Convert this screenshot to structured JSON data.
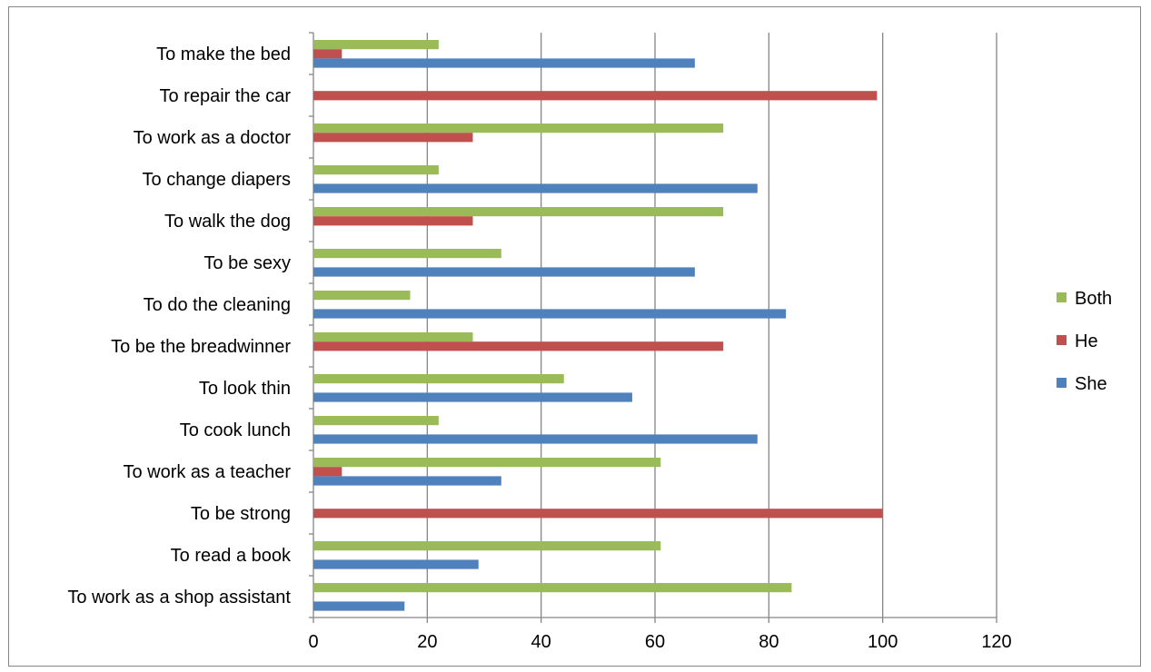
{
  "chart_data": {
    "type": "bar",
    "orientation": "horizontal",
    "categories": [
      "To make the bed",
      "To repair the car",
      "To work as a doctor",
      "To change diapers",
      "To walk the dog",
      "To be sexy",
      "To do the cleaning",
      "To be the breadwinner",
      "To look thin",
      "To cook lunch",
      "To work as a teacher",
      "To be strong",
      "To read a book",
      "To work as a shop assistant"
    ],
    "series": [
      {
        "name": "Both",
        "color": "#9BBB59",
        "values": [
          22,
          0,
          72,
          22,
          72,
          33,
          17,
          28,
          44,
          22,
          61,
          0,
          61,
          84
        ]
      },
      {
        "name": "He",
        "color": "#C0504D",
        "values": [
          5,
          99,
          28,
          0,
          28,
          0,
          0,
          72,
          0,
          0,
          5,
          100,
          0,
          0
        ]
      },
      {
        "name": "She",
        "color": "#4F81BD",
        "values": [
          67,
          0,
          0,
          78,
          0,
          67,
          83,
          0,
          56,
          78,
          33,
          0,
          29,
          16
        ]
      }
    ],
    "xlim": [
      0,
      120
    ],
    "xticks": [
      0,
      20,
      40,
      60,
      80,
      100,
      120
    ],
    "title": "",
    "xlabel": "",
    "ylabel": "",
    "grid": "vertical",
    "legend": "right"
  }
}
